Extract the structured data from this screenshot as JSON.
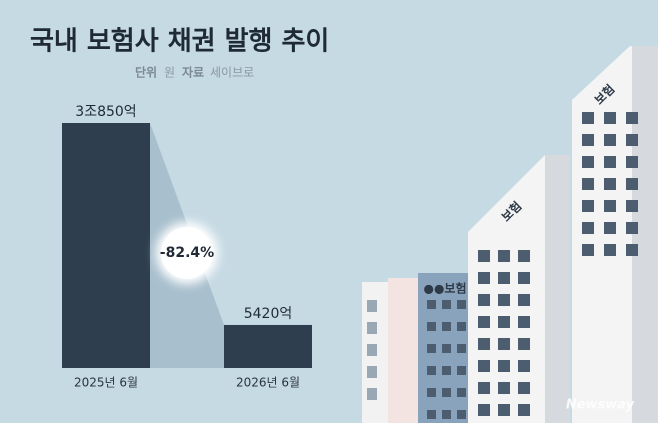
{
  "chart_data": {
    "type": "bar",
    "title": "국내 보험사 채권 발행 추이",
    "unit_label": "단위",
    "unit": "원",
    "source_label": "자료",
    "source": "세이브로",
    "categories": [
      "2025년 6월",
      "2026년 6월"
    ],
    "values": [
      30850,
      5420
    ],
    "value_labels": [
      "3조850억",
      "5420억"
    ],
    "color": "#2e3e4e",
    "change_label": "-82.4%",
    "building_signs": [
      "보험",
      "보험",
      "●●보험"
    ],
    "watermark": "Newsway"
  }
}
